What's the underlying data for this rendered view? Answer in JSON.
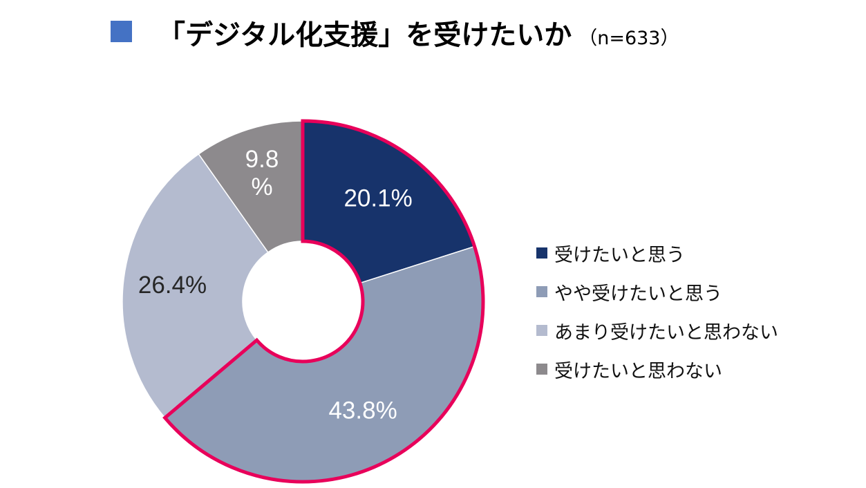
{
  "title": {
    "marker_color": "#4472c4",
    "main": "「デジタル化支援」を受けたいか",
    "sample": "（n=633）"
  },
  "chart_data": {
    "type": "pie",
    "variant": "donut",
    "title": "「デジタル化支援」を受けたいか（n=633）",
    "categories": [
      "受けたいと思う",
      "やや受けたいと思う",
      "あまり受けたいと思わない",
      "受けたいと思わない"
    ],
    "values": [
      20.1,
      43.8,
      26.4,
      9.8
    ],
    "data_labels": [
      "20.1%",
      "43.8%",
      "26.4%",
      "9.8\n%"
    ],
    "colors": [
      "#17336b",
      "#8e9cb6",
      "#b4bbcf",
      "#8d8a8d"
    ],
    "label_colors": [
      "#ffffff",
      "#ffffff",
      "#262626",
      "#ffffff"
    ],
    "highlight": {
      "categories": [
        "受けたいと思う",
        "やや受けたいと思う"
      ],
      "outline_color": "#e8005a"
    },
    "legend_position": "right"
  }
}
